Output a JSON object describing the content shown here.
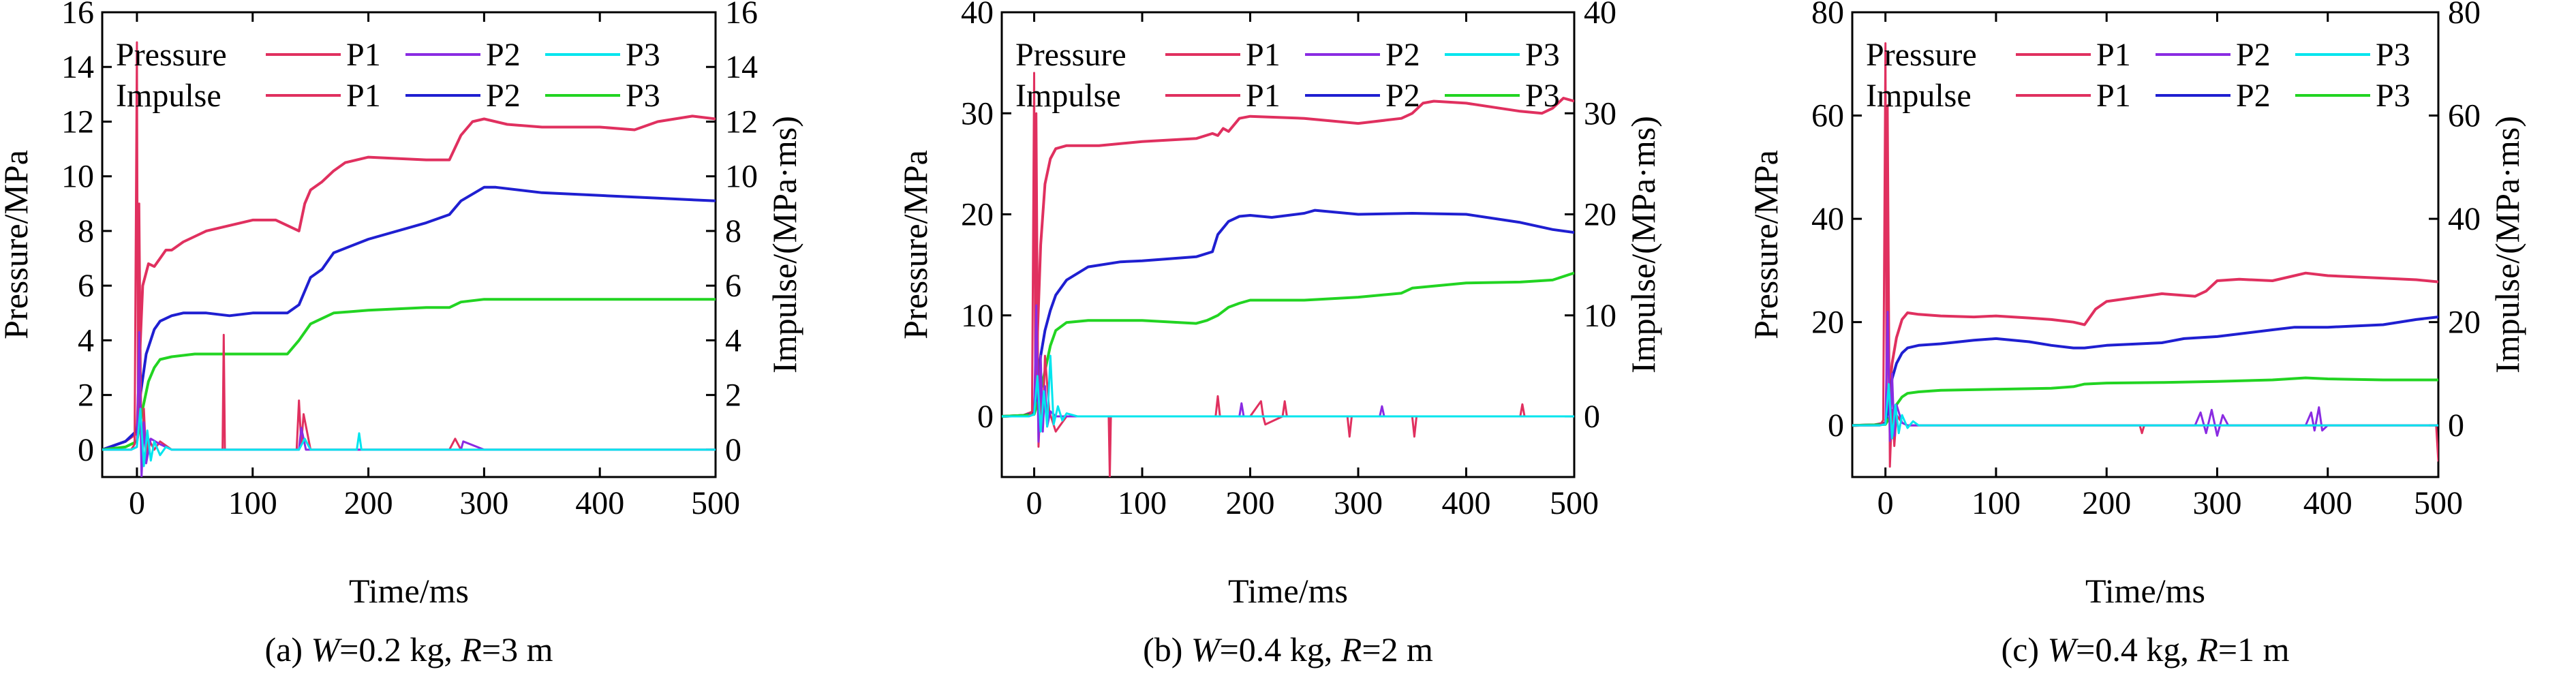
{
  "colors": {
    "P1": "#e0305f",
    "P2": "#1f1fd1",
    "P3": "#22d422",
    "P2_pressure": "#8a2be2",
    "P3_pressure": "#00e5ee",
    "axis": "#000000"
  },
  "legend": {
    "pressure_label": "Pressure",
    "impulse_label": "Impulse",
    "entries": [
      "P1",
      "P2",
      "P3"
    ]
  },
  "chart_data": [
    {
      "type": "line",
      "caption": "(a) W=0.2 kg, R=3 m",
      "caption_parts": {
        "prefix": "(a) ",
        "w_var": "W",
        "w_val": "=0.2 kg, ",
        "r_var": "R",
        "r_val": "=3 m"
      },
      "xlabel": "Time/ms",
      "ylabel_left": "Pressure/MPa",
      "ylabel_right": "Impulse/(MPa·ms)",
      "xlim": [
        -30,
        500
      ],
      "ylim": [
        -1,
        16
      ],
      "xticks": [
        0,
        100,
        200,
        300,
        400,
        500
      ],
      "yticks": [
        0,
        2,
        4,
        6,
        8,
        10,
        12,
        14,
        16
      ],
      "grid": false,
      "legend_position": "top",
      "impulse_series": [
        {
          "name": "P1",
          "x": [
            -30,
            -10,
            0,
            2,
            5,
            10,
            15,
            20,
            25,
            30,
            40,
            50,
            60,
            80,
            100,
            120,
            140,
            145,
            150,
            160,
            170,
            180,
            200,
            250,
            270,
            280,
            290,
            300,
            320,
            350,
            400,
            430,
            450,
            480,
            500
          ],
          "y": [
            0,
            0.3,
            0.6,
            3.0,
            6.0,
            6.8,
            6.7,
            7.0,
            7.3,
            7.3,
            7.6,
            7.8,
            8.0,
            8.2,
            8.4,
            8.4,
            8.0,
            9.0,
            9.5,
            9.8,
            10.2,
            10.5,
            10.7,
            10.6,
            10.6,
            11.5,
            12.0,
            12.1,
            11.9,
            11.8,
            11.8,
            11.7,
            12.0,
            12.2,
            12.1
          ]
        },
        {
          "name": "P2",
          "x": [
            -30,
            -10,
            0,
            3,
            8,
            15,
            20,
            30,
            40,
            60,
            80,
            100,
            130,
            140,
            150,
            160,
            170,
            200,
            250,
            270,
            280,
            300,
            310,
            350,
            400,
            450,
            500
          ],
          "y": [
            0,
            0.3,
            0.7,
            2.0,
            3.5,
            4.4,
            4.7,
            4.9,
            5.0,
            5.0,
            4.9,
            5.0,
            5.0,
            5.3,
            6.3,
            6.6,
            7.2,
            7.7,
            8.3,
            8.6,
            9.1,
            9.6,
            9.6,
            9.4,
            9.3,
            9.2,
            9.1
          ]
        },
        {
          "name": "P3",
          "x": [
            -30,
            -10,
            0,
            5,
            10,
            15,
            20,
            30,
            50,
            80,
            100,
            130,
            140,
            150,
            160,
            170,
            200,
            250,
            270,
            280,
            300,
            350,
            400,
            450,
            500
          ],
          "y": [
            0,
            0.1,
            0.3,
            1.5,
            2.5,
            3.0,
            3.3,
            3.4,
            3.5,
            3.5,
            3.5,
            3.5,
            4.0,
            4.6,
            4.8,
            5.0,
            5.1,
            5.2,
            5.2,
            5.4,
            5.5,
            5.5,
            5.5,
            5.5,
            5.5
          ]
        }
      ],
      "pressure_series": [
        {
          "name": "P1",
          "x": [
            -30,
            -5,
            -2,
            0,
            1,
            2,
            4,
            6,
            8,
            10,
            15,
            20,
            30,
            60,
            74,
            75,
            76,
            90,
            138,
            140,
            142,
            144,
            150,
            200,
            270,
            275,
            280,
            300,
            400,
            500
          ],
          "y": [
            0,
            0,
            0.2,
            14.9,
            0.5,
            9.0,
            -0.8,
            1.5,
            -0.3,
            0.4,
            0,
            0.3,
            0,
            0,
            0,
            4.2,
            0,
            0,
            0,
            1.8,
            0.2,
            1.3,
            0,
            0,
            0,
            0.4,
            0,
            0,
            0,
            0
          ]
        },
        {
          "name": "P2",
          "x": [
            -30,
            -5,
            0,
            2,
            4,
            6,
            8,
            12,
            20,
            30,
            60,
            140,
            142,
            146,
            200,
            280,
            282,
            300,
            400,
            500
          ],
          "y": [
            0,
            0,
            0.1,
            4.3,
            -1.0,
            1.0,
            -0.5,
            0.4,
            0.2,
            0,
            0,
            0,
            0.8,
            0,
            0,
            0,
            0.3,
            0,
            0,
            0
          ]
        },
        {
          "name": "P3",
          "x": [
            -30,
            -5,
            0,
            3,
            6,
            9,
            12,
            15,
            20,
            25,
            30,
            50,
            140,
            145,
            150,
            190,
            192,
            194,
            200,
            300,
            400,
            500
          ],
          "y": [
            0,
            0,
            0.1,
            1.5,
            -0.6,
            0.7,
            -0.4,
            0.3,
            -0.2,
            0.1,
            0,
            0,
            0,
            0.4,
            0,
            0,
            0.6,
            0,
            0,
            0,
            0,
            0
          ]
        }
      ]
    },
    {
      "type": "line",
      "caption": "(b) W=0.4 kg, R=2 m",
      "caption_parts": {
        "prefix": "(b) ",
        "w_var": "W",
        "w_val": "=0.4 kg, ",
        "r_var": "R",
        "r_val": "=2 m"
      },
      "xlabel": "Time/ms",
      "ylabel_left": "Pressure/MPa",
      "ylabel_right": "Impulse/(MPa·ms)",
      "xlim": [
        -30,
        500
      ],
      "ylim": [
        -6,
        40
      ],
      "xticks": [
        0,
        100,
        200,
        300,
        400,
        500
      ],
      "yticks": [
        0,
        10,
        20,
        30,
        40
      ],
      "grid": false,
      "legend_position": "top",
      "impulse_series": [
        {
          "name": "P1",
          "x": [
            -30,
            -10,
            0,
            3,
            6,
            10,
            15,
            20,
            30,
            60,
            100,
            150,
            165,
            170,
            175,
            180,
            190,
            200,
            250,
            300,
            340,
            350,
            360,
            370,
            400,
            450,
            470,
            480,
            490,
            500
          ],
          "y": [
            0,
            0.1,
            0.5,
            8.0,
            17.0,
            23.0,
            25.5,
            26.5,
            26.8,
            26.8,
            27.2,
            27.5,
            28.0,
            27.8,
            28.5,
            28.2,
            29.5,
            29.7,
            29.5,
            29.0,
            29.5,
            30.0,
            31.0,
            31.2,
            31.0,
            30.2,
            30.0,
            30.5,
            31.5,
            31.2
          ]
        },
        {
          "name": "P2",
          "x": [
            -30,
            -10,
            0,
            3,
            6,
            10,
            15,
            20,
            30,
            50,
            80,
            100,
            150,
            165,
            170,
            180,
            190,
            200,
            220,
            250,
            260,
            300,
            350,
            400,
            450,
            480,
            500
          ],
          "y": [
            0,
            0.1,
            0.3,
            3.0,
            6.0,
            8.5,
            10.5,
            12.0,
            13.5,
            14.8,
            15.3,
            15.4,
            15.8,
            16.3,
            18.0,
            19.3,
            19.8,
            19.9,
            19.7,
            20.1,
            20.4,
            20.0,
            20.1,
            20.0,
            19.2,
            18.5,
            18.2
          ]
        },
        {
          "name": "P3",
          "x": [
            -30,
            -10,
            0,
            5,
            10,
            15,
            20,
            30,
            50,
            100,
            150,
            160,
            170,
            180,
            190,
            200,
            250,
            300,
            340,
            350,
            400,
            450,
            480,
            500
          ],
          "y": [
            0,
            0.1,
            0.2,
            2.0,
            4.5,
            7.0,
            8.5,
            9.3,
            9.5,
            9.5,
            9.2,
            9.5,
            10.0,
            10.8,
            11.2,
            11.5,
            11.5,
            11.8,
            12.2,
            12.7,
            13.2,
            13.3,
            13.5,
            14.2
          ]
        }
      ],
      "pressure_series": [
        {
          "name": "P1",
          "x": [
            -30,
            -5,
            -2,
            0,
            1,
            2,
            4,
            6,
            8,
            10,
            14,
            20,
            30,
            69,
            70,
            71,
            100,
            168,
            170,
            172,
            200,
            210,
            212,
            214,
            230,
            232,
            234,
            290,
            292,
            294,
            350,
            352,
            354,
            380,
            400,
            450,
            452,
            454,
            500
          ],
          "y": [
            0,
            0,
            0.5,
            34.0,
            3.0,
            30.0,
            -3.0,
            2.0,
            -1.0,
            6.0,
            0.5,
            -1.5,
            0,
            0,
            -6.0,
            0,
            0,
            0,
            2.0,
            0,
            0,
            1.5,
            0,
            -0.8,
            0,
            1.5,
            0,
            0,
            -2.0,
            0,
            0,
            -2.0,
            0,
            0,
            0,
            0,
            1.2,
            0,
            0
          ]
        },
        {
          "name": "P2",
          "x": [
            -30,
            -5,
            0,
            2,
            4,
            6,
            8,
            10,
            12,
            15,
            20,
            30,
            100,
            190,
            192,
            194,
            250,
            320,
            322,
            324,
            400,
            500
          ],
          "y": [
            0,
            0,
            0.2,
            11.0,
            -2.5,
            6.0,
            -1.5,
            3.0,
            -1.0,
            0.5,
            0,
            0,
            0,
            0,
            1.3,
            0,
            0,
            0,
            1.0,
            0,
            0,
            0
          ]
        },
        {
          "name": "P3",
          "x": [
            -30,
            -5,
            0,
            3,
            6,
            9,
            12,
            15,
            18,
            22,
            26,
            30,
            40,
            100,
            200,
            300,
            400,
            500
          ],
          "y": [
            0,
            0,
            0.2,
            4.0,
            -1.5,
            2.5,
            -1.0,
            6.0,
            -0.8,
            1.0,
            -0.4,
            0.3,
            0,
            0,
            0,
            0,
            0,
            0
          ]
        }
      ]
    },
    {
      "type": "line",
      "caption": "(c) W=0.4 kg, R=1 m",
      "caption_parts": {
        "prefix": "(c) ",
        "w_var": "W",
        "w_val": "=0.4 kg, ",
        "r_var": "R",
        "r_val": "=1 m"
      },
      "xlabel": "Time/ms",
      "ylabel_left": "Pressure/MPa",
      "ylabel_right": "Impulse/(MPa·ms)",
      "xlim": [
        -30,
        500
      ],
      "ylim": [
        -10,
        80
      ],
      "xticks": [
        0,
        100,
        200,
        300,
        400,
        500
      ],
      "yticks": [
        0,
        20,
        40,
        60,
        80
      ],
      "grid": false,
      "legend_position": "top",
      "impulse_series": [
        {
          "name": "P1",
          "x": [
            -30,
            -10,
            0,
            3,
            6,
            10,
            15,
            20,
            30,
            50,
            80,
            100,
            130,
            150,
            170,
            180,
            190,
            200,
            250,
            280,
            290,
            300,
            320,
            350,
            370,
            380,
            400,
            450,
            480,
            500
          ],
          "y": [
            0,
            0.1,
            0.5,
            5.0,
            12.0,
            17.0,
            20.5,
            21.8,
            21.5,
            21.2,
            21.0,
            21.2,
            20.8,
            20.5,
            20.0,
            19.5,
            22.5,
            24.0,
            25.5,
            25.0,
            26.0,
            28.0,
            28.3,
            28.0,
            29.0,
            29.5,
            29.0,
            28.5,
            28.2,
            27.8
          ]
        },
        {
          "name": "P2",
          "x": [
            -30,
            -10,
            0,
            3,
            6,
            10,
            15,
            20,
            30,
            50,
            80,
            100,
            130,
            150,
            170,
            180,
            200,
            250,
            270,
            300,
            350,
            370,
            400,
            450,
            480,
            500
          ],
          "y": [
            0,
            0.1,
            0.3,
            4.0,
            9.0,
            12.0,
            14.0,
            15.0,
            15.5,
            15.8,
            16.5,
            16.8,
            16.2,
            15.5,
            15.0,
            15.0,
            15.5,
            16.0,
            16.8,
            17.2,
            18.5,
            19.0,
            19.0,
            19.5,
            20.5,
            21.0
          ]
        },
        {
          "name": "P3",
          "x": [
            -30,
            -10,
            0,
            5,
            10,
            15,
            20,
            30,
            50,
            100,
            150,
            170,
            180,
            200,
            250,
            300,
            350,
            380,
            400,
            450,
            500
          ],
          "y": [
            0,
            0.1,
            0.2,
            2.0,
            4.0,
            5.5,
            6.2,
            6.5,
            6.8,
            7.0,
            7.2,
            7.5,
            8.0,
            8.2,
            8.3,
            8.5,
            8.8,
            9.2,
            9.0,
            8.8,
            8.8
          ]
        }
      ],
      "pressure_series": [
        {
          "name": "P1",
          "x": [
            -30,
            -5,
            -2,
            0,
            1,
            2,
            4,
            6,
            8,
            10,
            15,
            20,
            30,
            100,
            230,
            232,
            234,
            300,
            400,
            498,
            500
          ],
          "y": [
            0,
            0,
            1.0,
            74.0,
            5.0,
            62.0,
            -8.0,
            3.0,
            -4.0,
            2.0,
            0.5,
            0,
            0,
            0,
            0,
            -1.5,
            0,
            0,
            0,
            0,
            -7.0
          ]
        },
        {
          "name": "P2",
          "x": [
            -30,
            -5,
            0,
            2,
            4,
            6,
            8,
            10,
            15,
            20,
            100,
            280,
            285,
            290,
            295,
            300,
            305,
            310,
            380,
            385,
            388,
            392,
            395,
            400,
            500
          ],
          "y": [
            0,
            0,
            0.3,
            22.0,
            -3.0,
            10.0,
            -2.0,
            4.0,
            0.5,
            0,
            0,
            0,
            2.5,
            -1.5,
            3.0,
            -2.0,
            2.0,
            0,
            0,
            2.5,
            -1.0,
            3.5,
            -1.0,
            0,
            0
          ]
        },
        {
          "name": "P3",
          "x": [
            -30,
            -5,
            0,
            3,
            6,
            9,
            12,
            15,
            20,
            25,
            30,
            100,
            200,
            300,
            400,
            500
          ],
          "y": [
            0,
            0,
            0.2,
            8.0,
            -2.5,
            4.0,
            -1.5,
            2.0,
            -0.5,
            0.8,
            0,
            0,
            0,
            0,
            0,
            0
          ]
        }
      ]
    }
  ]
}
